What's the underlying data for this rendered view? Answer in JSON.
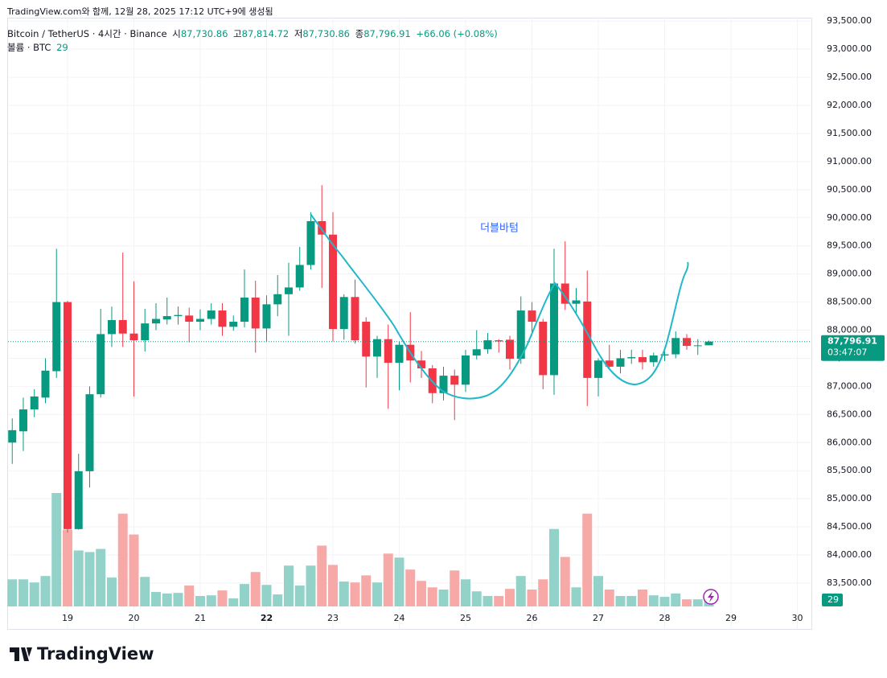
{
  "header": {
    "caption": "TradingView.com와 함께, 12월 28, 2025 17:12 UTC+9에 생성됨",
    "symbol": "Bitcoin / TetherUS · 4시간 · Binance",
    "open_label": "시",
    "open": "87,730.86",
    "high_label": "고",
    "high": "87,814.72",
    "low_label": "저",
    "low": "87,730.86",
    "close_label": "종",
    "close": "87,796.91",
    "change": "+66.06 (+0.08%)",
    "volume_label": "볼륨 · BTC"
  },
  "chart_data": {
    "type": "candlestick",
    "annotation": "더블바텀",
    "up_color": "#089981",
    "down_color": "#f23645",
    "volume_up_color": "#92d2c9",
    "volume_down_color": "#f7a9a7",
    "grid": true,
    "open": [
      86000,
      86200,
      86590,
      86800,
      87270,
      88500,
      84460,
      85490,
      86860,
      87930,
      88180,
      87940,
      87820,
      88120,
      88190,
      88250,
      88260,
      88150,
      88200,
      88350,
      88060,
      88150,
      88580,
      88030,
      88460,
      88640,
      88760,
      89160,
      89940,
      89700,
      88020,
      88590,
      88150,
      87530,
      87840,
      87420,
      87740,
      87460,
      87320,
      86880,
      87190,
      87030,
      87550,
      87660,
      87820,
      87830,
      87490,
      88350,
      88150,
      87200,
      88830,
      88470,
      88510,
      87150,
      87460,
      87350,
      87500,
      87520,
      87430,
      87550,
      87570,
      87860,
      87720,
      87730.86
    ],
    "high": [
      86430,
      86800,
      86950,
      87500,
      89450,
      88520,
      85800,
      87000,
      88380,
      88420,
      89380,
      88870,
      88380,
      88480,
      88580,
      88420,
      88400,
      88370,
      88480,
      88480,
      88260,
      89080,
      88880,
      88620,
      88980,
      89200,
      89480,
      90100,
      90580,
      90100,
      88640,
      88900,
      88230,
      87900,
      88100,
      87800,
      88320,
      87630,
      87380,
      87350,
      87300,
      87650,
      88000,
      87950,
      87840,
      87900,
      88600,
      88500,
      88200,
      89450,
      89580,
      88750,
      89060,
      87500,
      87740,
      87650,
      87650,
      87650,
      87600,
      87620,
      87980,
      87930,
      87840,
      87814.72
    ],
    "low": [
      85620,
      85850,
      86450,
      86700,
      87150,
      84400,
      84450,
      85200,
      86800,
      87700,
      87700,
      86820,
      87620,
      88000,
      88100,
      88100,
      87780,
      88000,
      88100,
      87900,
      87990,
      88050,
      87600,
      87800,
      88250,
      87900,
      88700,
      89080,
      88750,
      87800,
      87830,
      87760,
      86980,
      87150,
      86600,
      86930,
      87070,
      87150,
      86700,
      86750,
      86400,
      86900,
      87480,
      87580,
      87600,
      87300,
      87400,
      87900,
      86950,
      86850,
      88360,
      88300,
      86650,
      86820,
      87300,
      87230,
      87400,
      87300,
      87350,
      87450,
      87500,
      87650,
      87560,
      87730.86
    ],
    "close": [
      86220,
      86590,
      86820,
      87280,
      88500,
      84460,
      85490,
      86860,
      87930,
      88180,
      87940,
      87820,
      88120,
      88200,
      88250,
      88270,
      88150,
      88200,
      88350,
      88060,
      88150,
      88580,
      88030,
      88460,
      88640,
      88760,
      89160,
      89940,
      89700,
      88020,
      88590,
      87820,
      87530,
      87840,
      87420,
      87740,
      87460,
      87320,
      86880,
      87190,
      87030,
      87550,
      87660,
      87820,
      87800,
      87490,
      88350,
      88150,
      87200,
      88830,
      88470,
      88530,
      87150,
      87460,
      87350,
      87500,
      87520,
      87430,
      87550,
      87570,
      87860,
      87720,
      87730,
      87796.91
    ],
    "volume": [
      122,
      122,
      108,
      137,
      511,
      346,
      252,
      245,
      259,
      130,
      418,
      324,
      133,
      65,
      58,
      61,
      94,
      47,
      50,
      72,
      36,
      101,
      155,
      97,
      54,
      184,
      94,
      184,
      274,
      187,
      112,
      108,
      140,
      108,
      238,
      220,
      166,
      115,
      86,
      76,
      162,
      122,
      68,
      47,
      47,
      79,
      137,
      76,
      122,
      349,
      223,
      86,
      418,
      137,
      76,
      47,
      47,
      76,
      50,
      43,
      58,
      32,
      32,
      29
    ],
    "last_price_label": "87,796.91",
    "countdown": "03:47:07",
    "xlim": [
      -0.38,
      72.2
    ],
    "xticks": [
      {
        "value": 5,
        "label": "19"
      },
      {
        "value": 11,
        "label": "20"
      },
      {
        "value": 17,
        "label": "21"
      },
      {
        "value": 23,
        "label": "22"
      },
      {
        "value": 29,
        "label": "23"
      },
      {
        "value": 35,
        "label": "24"
      },
      {
        "value": 41,
        "label": "25"
      },
      {
        "value": 47,
        "label": "26"
      },
      {
        "value": 53,
        "label": "27"
      },
      {
        "value": 59,
        "label": "28"
      },
      {
        "value": 65,
        "label": "29"
      },
      {
        "value": 71,
        "label": "30"
      }
    ],
    "ylim": [
      83070,
      93560
    ],
    "yticks": [
      {
        "value": 83500,
        "label": "83,500.00"
      },
      {
        "value": 84000,
        "label": "84,000.00"
      },
      {
        "value": 84500,
        "label": "84,500.00"
      },
      {
        "value": 85000,
        "label": "85,000.00"
      },
      {
        "value": 85500,
        "label": "85,500.00"
      },
      {
        "value": 86000,
        "label": "86,000.00"
      },
      {
        "value": 86500,
        "label": "86,500.00"
      },
      {
        "value": 87000,
        "label": "87,000.00"
      },
      {
        "value": 87500,
        "label": "87,500.00"
      },
      {
        "value": 88000,
        "label": "88,000.00"
      },
      {
        "value": 88500,
        "label": "88,500.00"
      },
      {
        "value": 89000,
        "label": "89,000.00"
      },
      {
        "value": 89500,
        "label": "89,500.00"
      },
      {
        "value": 90000,
        "label": "90,000.00"
      },
      {
        "value": 90500,
        "label": "90,500.00"
      },
      {
        "value": 91000,
        "label": "91,000.00"
      },
      {
        "value": 91500,
        "label": "91,500.00"
      },
      {
        "value": 92000,
        "label": "92,000.00"
      },
      {
        "value": 92500,
        "label": "92,500.00"
      },
      {
        "value": 93000,
        "label": "93,000.00"
      },
      {
        "value": 93500,
        "label": "93,500.00"
      }
    ]
  },
  "footer": {
    "brand": "TradingView"
  }
}
